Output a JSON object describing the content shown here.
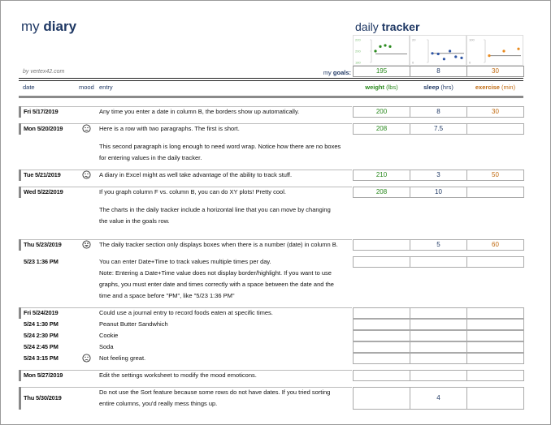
{
  "header": {
    "title_light": "my",
    "title_bold": "diary",
    "tracker_light": "daily",
    "tracker_bold": "tracker",
    "byline": "by vertex42.com",
    "goals_label_light": "my",
    "goals_label_bold": "goals:",
    "goals": {
      "weight": "195",
      "sleep": "8",
      "exercise": "30"
    }
  },
  "columns": {
    "date": "date",
    "mood": "mood",
    "entry": "entry",
    "weight": "weight",
    "weight_unit": "(lbs)",
    "sleep": "sleep",
    "sleep_unit": "(hrs)",
    "exercise": "exercise",
    "exercise_unit": "(min)"
  },
  "colors": {
    "weight": "#2a8a1e",
    "sleep": "#2f55a4",
    "exercise": "#e98a1e",
    "navy": "#1f3864"
  },
  "chart_data": [
    {
      "type": "scatter",
      "series": "weight",
      "ylim": [
        180,
        220
      ],
      "yticks": [
        "220",
        "200",
        "180"
      ],
      "values": [
        200,
        208,
        210,
        208
      ],
      "goal": 195
    },
    {
      "type": "scatter",
      "series": "sleep",
      "ylim": [
        0,
        20
      ],
      "yticks": [
        "20",
        "0"
      ],
      "values": [
        8,
        7.5,
        3,
        10,
        5,
        4
      ],
      "goal": 8
    },
    {
      "type": "scatter",
      "series": "exercise",
      "ylim": [
        0,
        100
      ],
      "yticks": [
        "100",
        "0"
      ],
      "values": [
        30,
        50,
        60
      ],
      "goal": 30
    }
  ],
  "entries": [
    {
      "date": "Fri 5/17/2019",
      "mood": "",
      "day": true,
      "lines": [
        "Any time you enter a date in column B, the borders show up automatically."
      ],
      "tracker": [
        "200",
        "8",
        "30"
      ]
    },
    {
      "date": "Mon 5/20/2019",
      "mood": "neutral-face",
      "day": true,
      "lines": [
        "Here is a row with two paragraphs. The first is short.",
        "",
        "This second paragraph is long enough to need word wrap. Notice how there are no boxes",
        "for entering values in the daily tracker."
      ],
      "tracker": [
        "208",
        "7.5",
        ""
      ]
    },
    {
      "date": "Tue 5/21/2019",
      "mood": "confused-face",
      "day": true,
      "lines": [
        "A diary in Excel might as well take advantage of the ability to track stuff."
      ],
      "tracker": [
        "210",
        "3",
        "50"
      ]
    },
    {
      "date": "Wed 5/22/2019",
      "mood": "",
      "day": true,
      "lines": [
        "If you graph column F vs. column B, you can do XY plots! Pretty cool.",
        "",
        "The charts in the daily tracker include a horizontal line that you can move by changing",
        "the value in the goals row.",
        ""
      ],
      "tracker": [
        "208",
        "10",
        ""
      ]
    },
    {
      "date": "Thu 5/23/2019",
      "mood": "grin-face",
      "day": true,
      "lines": [
        "The daily tracker section only displays boxes when there is a number (date) in column B."
      ],
      "tracker": [
        "",
        "5",
        "60"
      ]
    },
    {
      "date": "5/23 1:36 PM",
      "mood": "",
      "day": false,
      "lines": [
        "You can enter Date+Time to track values multiple times per day.",
        "Note: Entering a Date+Time value does not display border/highlight. If you want to use",
        "graphs, you must enter date and times correctly with a space between the date and the",
        "time and a space before \"PM\", like \"5/23 1:36 PM\""
      ],
      "tracker": [
        "",
        "",
        ""
      ]
    },
    {
      "date": "Fri 5/24/2019",
      "mood": "",
      "day": true,
      "lines": [
        "Could use a journal entry to record foods eaten at specific times."
      ],
      "tracker": [
        "",
        "",
        ""
      ]
    },
    {
      "date": "5/24 1:30 PM",
      "mood": "",
      "day": false,
      "tight": true,
      "lines": [
        "Peanut Butter Sandwhich"
      ],
      "tracker": [
        "",
        "",
        ""
      ]
    },
    {
      "date": "5/24 2:30 PM",
      "mood": "",
      "day": false,
      "tight": true,
      "lines": [
        "Cookie"
      ],
      "tracker": [
        "",
        "",
        ""
      ]
    },
    {
      "date": "5/24 2:45 PM",
      "mood": "",
      "day": false,
      "tight": true,
      "lines": [
        "Soda"
      ],
      "tracker": [
        "",
        "",
        ""
      ]
    },
    {
      "date": "5/24 3:15 PM",
      "mood": "sad-face",
      "day": false,
      "tight": true,
      "lines": [
        "Not feeling great."
      ],
      "tracker": [
        "",
        "",
        ""
      ]
    },
    {
      "date": "Mon 5/27/2019",
      "mood": "",
      "day": true,
      "lines": [
        "Edit the settings worksheet to modify the mood emoticons."
      ],
      "tracker": [
        "",
        "",
        ""
      ]
    },
    {
      "date": "Thu 5/30/2019",
      "mood": "",
      "day": true,
      "tall": true,
      "lines": [
        "Do not use the Sort feature because some rows do not have dates. If you tried sorting",
        "entire columns, you'd really mess things up."
      ],
      "tracker": [
        "",
        "4",
        ""
      ]
    }
  ]
}
